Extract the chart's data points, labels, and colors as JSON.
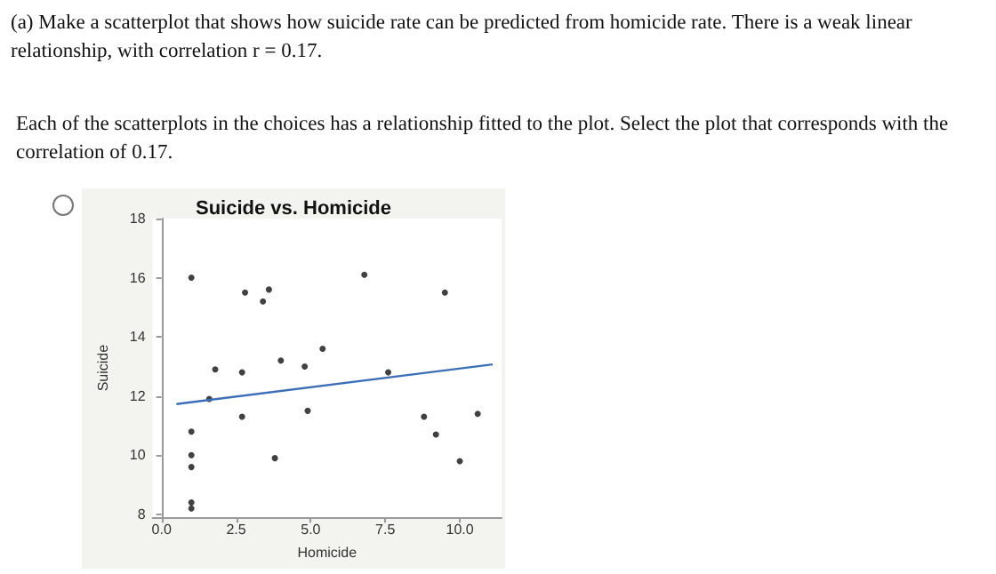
{
  "chart_data": {
    "type": "scatter",
    "title": "Suicide vs. Homicide",
    "xlabel": "Homicide",
    "ylabel": "Suicide",
    "annotations": [
      "(a) Make a scatterplot that shows how suicide rate can be predicted from homicide rate. There is a weak linear relationship, with correlation r = 0.17.",
      "Each of the scatterplots in the choices has a relationship fitted to the plot. Select the plot that corresponds with the correlation of 0.17."
    ],
    "x": [
      1.0,
      2.8,
      3.6,
      3.4,
      6.8,
      9.5,
      5.4,
      4.0,
      4.8,
      1.8,
      2.7,
      7.6,
      1.6,
      2.7,
      4.9,
      8.8,
      10.6,
      9.2,
      1.0,
      1.0,
      1.0,
      3.8,
      10.0,
      1.0,
      1.0
    ],
    "series": [
      {
        "color": "#111111",
        "values": [
          16.0,
          15.5,
          15.6,
          15.2,
          16.1,
          15.5,
          13.6,
          13.2,
          13.0,
          12.9,
          12.8,
          12.8,
          11.9,
          11.3,
          11.5,
          11.3,
          11.4,
          10.7,
          10.8,
          10.0,
          9.6,
          9.9,
          9.8,
          8.4,
          8.2
        ]
      },
      {
        "type": "line",
        "color": "#3a6fb8",
        "x": [
          0.5,
          11.1
        ],
        "values": [
          11.73,
          13.07
        ]
      }
    ],
    "xlim": [
      -0.3,
      11.4
    ],
    "ylim": [
      7.9,
      18
    ],
    "xticks": [
      {
        "value": 0,
        "label": "0.0"
      },
      2.5,
      {
        "value": 5,
        "label": "5.0"
      },
      7.5,
      {
        "value": 10,
        "label": "10.0"
      }
    ],
    "yticks": [
      8,
      10,
      12,
      14,
      16,
      18
    ]
  }
}
